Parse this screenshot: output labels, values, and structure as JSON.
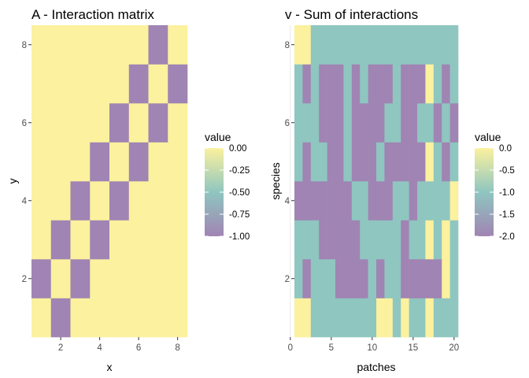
{
  "chart_data": [
    {
      "type": "heatmap",
      "title": "A - Interaction matrix",
      "xlabel": "x",
      "ylabel": "y",
      "xlim": [
        0.5,
        8.5
      ],
      "ylim": [
        0.5,
        8.5
      ],
      "xticks": [
        2,
        4,
        6,
        8
      ],
      "yticks": [
        2,
        4,
        6,
        8
      ],
      "x": [
        1,
        2,
        3,
        4,
        5,
        6,
        7,
        8
      ],
      "y": [
        1,
        2,
        3,
        4,
        5,
        6,
        7,
        8
      ],
      "cells_by_row": [
        [
          0,
          -1,
          0,
          0,
          0,
          0,
          0,
          0
        ],
        [
          -1,
          0,
          -1,
          0,
          0,
          0,
          0,
          0
        ],
        [
          0,
          -1,
          0,
          -1,
          0,
          0,
          0,
          0
        ],
        [
          0,
          0,
          -1,
          0,
          -1,
          0,
          0,
          0
        ],
        [
          0,
          0,
          0,
          -1,
          0,
          -1,
          0,
          0
        ],
        [
          0,
          0,
          0,
          0,
          -1,
          0,
          -1,
          0
        ],
        [
          0,
          0,
          0,
          0,
          0,
          -1,
          0,
          -1
        ],
        [
          0,
          0,
          0,
          0,
          0,
          0,
          -1,
          0
        ]
      ],
      "legend": {
        "title": "value",
        "placement": "right",
        "range": [
          -1,
          0
        ],
        "ticks": [
          0,
          -0.25,
          -0.5,
          -0.75,
          -1
        ],
        "tick_labels": [
          "0.00",
          "-0.25",
          "-0.50",
          "-0.75",
          "-1.00"
        ]
      },
      "grid": true
    },
    {
      "type": "heatmap",
      "title": "v - Sum of interactions",
      "xlabel": "patches",
      "ylabel": "species",
      "xlim": [
        0.5,
        20.5
      ],
      "ylim": [
        0.5,
        8.5
      ],
      "xticks": [
        0,
        5,
        10,
        15,
        20
      ],
      "yticks": [
        2,
        4,
        6,
        8
      ],
      "x": [
        1,
        2,
        3,
        4,
        5,
        6,
        7,
        8,
        9,
        10,
        11,
        12,
        13,
        14,
        15,
        16,
        17,
        18,
        19,
        20
      ],
      "y": [
        1,
        2,
        3,
        4,
        5,
        6,
        7,
        8
      ],
      "cells_by_row": [
        [
          0,
          0,
          -1,
          -1,
          -1,
          -1,
          -1,
          -1,
          -1,
          -1,
          0,
          0,
          -1,
          0,
          -1,
          -1,
          0,
          -1,
          -1,
          -1
        ],
        [
          -1,
          -2,
          -1,
          -1,
          -1,
          -2,
          -2,
          -2,
          -2,
          -1,
          -2,
          -1,
          -1,
          -2,
          -2,
          -2,
          -2,
          -2,
          0,
          -1
        ],
        [
          -1,
          -1,
          -1,
          -2,
          -2,
          -2,
          -2,
          -2,
          -1,
          -1,
          -1,
          -1,
          -1,
          -2,
          -1,
          -1,
          0,
          -1,
          0,
          -1
        ],
        [
          -2,
          -2,
          -2,
          -2,
          -2,
          -2,
          -2,
          -1,
          -1,
          -2,
          -2,
          -2,
          -1,
          -1,
          -2,
          -1,
          -1,
          -1,
          -1,
          0
        ],
        [
          -1,
          -2,
          -1,
          -1,
          -2,
          -2,
          -1,
          -2,
          -2,
          -2,
          -1,
          -2,
          -2,
          -2,
          -2,
          -2,
          0,
          -1,
          -2,
          -1
        ],
        [
          -1,
          -1,
          -1,
          -2,
          -2,
          -2,
          -1,
          -2,
          -2,
          -2,
          -2,
          -1,
          -1,
          -2,
          -2,
          -1,
          -1,
          -2,
          -1,
          -2
        ],
        [
          -1,
          -2,
          -1,
          -2,
          -2,
          -2,
          -1,
          -2,
          -1,
          -2,
          -2,
          -2,
          -1,
          -2,
          -2,
          -2,
          0,
          -1,
          -2,
          -1
        ],
        [
          0,
          0,
          -1,
          -1,
          -1,
          -1,
          -1,
          -1,
          -1,
          -1,
          -1,
          -1,
          -1,
          -1,
          -1,
          -1,
          -1,
          -1,
          -1,
          -1
        ]
      ],
      "legend": {
        "title": "value",
        "placement": "right",
        "range": [
          -2,
          0
        ],
        "ticks": [
          0,
          -0.5,
          -1,
          -1.5,
          -2
        ],
        "tick_labels": [
          "0.0",
          "-0.5",
          "-1.0",
          "-1.5",
          "-2.0"
        ]
      },
      "grid": true
    }
  ],
  "colors": {
    "low": "#a084b3",
    "mid": "#8fc6c0",
    "high": "#fbf19e",
    "panel_bg": "#ffffff",
    "gridline": "#ebebeb"
  }
}
